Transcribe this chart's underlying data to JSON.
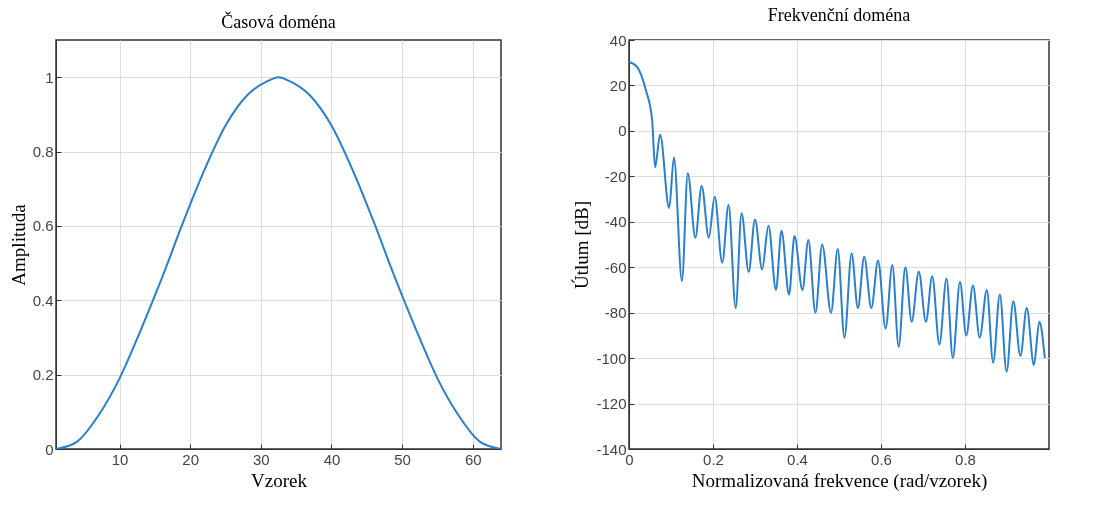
{
  "chart_data": [
    {
      "type": "line",
      "title": "Časová doména",
      "xlabel": "Vzorek",
      "ylabel": "Amplituda",
      "x": [
        1,
        4,
        7,
        10,
        13,
        16,
        19,
        22,
        25,
        28,
        31,
        32.5,
        34,
        37,
        40,
        43,
        46,
        49,
        52,
        55,
        58,
        61,
        64
      ],
      "series": [
        {
          "color": "#2b7fcc",
          "values": [
            0,
            0.02,
            0.09,
            0.19,
            0.32,
            0.46,
            0.61,
            0.75,
            0.87,
            0.95,
            0.99,
            1,
            0.99,
            0.95,
            0.87,
            0.75,
            0.61,
            0.46,
            0.32,
            0.19,
            0.09,
            0.02,
            0
          ]
        }
      ],
      "xlim": [
        1,
        64
      ],
      "ylim": [
        0,
        1.1
      ],
      "xticks": [
        10,
        20,
        30,
        40,
        50,
        60
      ],
      "yticks": [
        0,
        0.2,
        0.4,
        0.6,
        0.8,
        1
      ],
      "grid": true
    },
    {
      "type": "line",
      "title": "Frekvenční doména",
      "xlabel": "Normalizovaná frekvence (rad/vzorek)",
      "ylabel": "Útlum [dB]",
      "x": [
        0,
        0.02,
        0.04,
        0.055,
        0.0622,
        0.074,
        0.0956,
        0.107,
        0.126,
        0.14,
        0.158,
        0.173,
        0.19,
        0.204,
        0.222,
        0.237,
        0.254,
        0.268,
        0.285,
        0.3,
        0.317,
        0.332,
        0.35,
        0.363,
        0.381,
        0.394,
        0.413,
        0.427,
        0.444,
        0.46,
        0.481,
        0.497,
        0.513,
        0.53,
        0.545,
        0.56,
        0.577,
        0.593,
        0.611,
        0.627,
        0.642,
        0.658,
        0.673,
        0.69,
        0.707,
        0.722,
        0.739,
        0.756,
        0.771,
        0.788,
        0.803,
        0.819,
        0.835,
        0.852,
        0.867,
        0.883,
        0.899,
        0.915,
        0.932,
        0.947,
        0.964,
        0.977,
        0.99
      ],
      "series": [
        {
          "color": "#2b7fcc",
          "values": [
            30.3,
            28,
            18,
            5,
            -16,
            -1.7,
            -34,
            -11.7,
            -66,
            -18.6,
            -47,
            -24.2,
            -47,
            -29,
            -58,
            -32.6,
            -78,
            -36.3,
            -62,
            -39,
            -61,
            -41.8,
            -70,
            -44,
            -72,
            -46.3,
            -70,
            -48,
            -80,
            -50,
            -80,
            -52,
            -91,
            -54,
            -78,
            -55.4,
            -78,
            -57,
            -87,
            -59,
            -95,
            -60,
            -84,
            -62,
            -84,
            -64,
            -94,
            -65,
            -100,
            -66.5,
            -90,
            -68,
            -91,
            -70,
            -102,
            -72,
            -106,
            -75,
            -99,
            -78,
            -103,
            -84,
            -100
          ]
        }
      ],
      "xlim": [
        0,
        1
      ],
      "ylim": [
        -140,
        40
      ],
      "xticks": [
        0,
        0.2,
        0.4,
        0.6,
        0.8
      ],
      "yticks": [
        -140,
        -120,
        -100,
        -80,
        -60,
        -40,
        -20,
        0,
        20,
        40
      ],
      "grid": true
    }
  ]
}
